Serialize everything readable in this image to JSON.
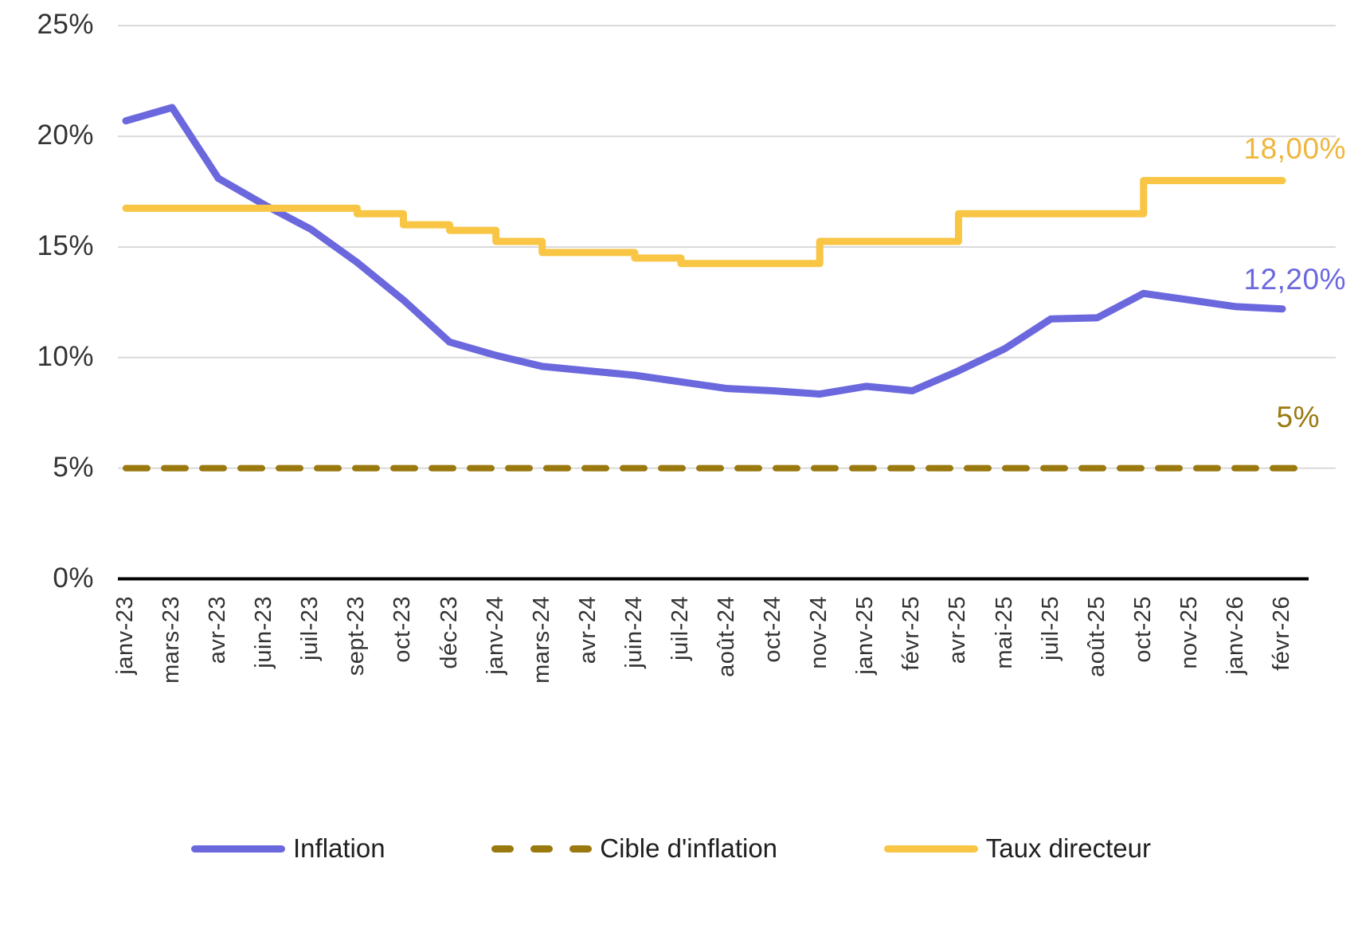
{
  "chart_data": {
    "type": "line",
    "title": "",
    "xlabel": "",
    "ylabel": "",
    "categories": [
      "janv-23",
      "mars-23",
      "avr-23",
      "juin-23",
      "juil-23",
      "sept-23",
      "oct-23",
      "déc-23",
      "janv-24",
      "mars-24",
      "avr-24",
      "juin-24",
      "juil-24",
      "août-24",
      "oct-24",
      "nov-24",
      "janv-25",
      "févr-25",
      "avr-25",
      "mai-25",
      "juil-25",
      "août-25",
      "oct-25",
      "nov-25",
      "janv-26",
      "févr-26"
    ],
    "ylim": [
      0,
      25
    ],
    "yticks": [
      0,
      5,
      10,
      15,
      20,
      25
    ],
    "ytick_labels": [
      "0%",
      "5%",
      "10%",
      "15%",
      "20%",
      "25%"
    ],
    "grid": true,
    "legend_position": "bottom",
    "series": [
      {
        "name": "Inflation",
        "style": "solid",
        "color": "#6B68DE",
        "values": [
          20.7,
          21.3,
          18.1,
          16.9,
          15.8,
          14.3,
          12.6,
          10.7,
          10.1,
          9.6,
          9.4,
          9.2,
          8.9,
          8.6,
          8.5,
          8.35,
          8.7,
          8.5,
          9.4,
          10.4,
          11.75,
          11.8,
          12.9,
          12.6,
          12.3,
          12.2
        ]
      },
      {
        "name": "Cible d'inflation",
        "style": "dashed",
        "color": "#9A790F",
        "values": [
          5,
          5,
          5,
          5,
          5,
          5,
          5,
          5,
          5,
          5,
          5,
          5,
          5,
          5,
          5,
          5,
          5,
          5,
          5,
          5,
          5,
          5,
          5,
          5,
          5,
          5
        ]
      },
      {
        "name": "Taux directeur",
        "style": "step",
        "color": "#F8C544",
        "values": [
          16.75,
          16.75,
          16.75,
          16.75,
          16.75,
          16.5,
          16.0,
          15.75,
          15.25,
          14.75,
          14.75,
          14.5,
          14.25,
          14.25,
          14.25,
          15.25,
          15.25,
          15.25,
          16.5,
          16.5,
          16.5,
          16.5,
          18.0,
          18.0,
          18.0,
          18.0
        ]
      }
    ],
    "annotations": [
      {
        "text": "18,00%",
        "series": "Taux directeur",
        "color": "#EEB63C"
      },
      {
        "text": "12,20%",
        "series": "Inflation",
        "color": "#6B68DE"
      },
      {
        "text": "5%",
        "series": "Cible d'inflation",
        "color": "#9A790F"
      }
    ],
    "grid_color": "#D9D9D9",
    "axis_color": "#000000"
  },
  "legend": {
    "items": [
      {
        "label": "Inflation",
        "color": "#6B68DE",
        "style": "solid"
      },
      {
        "label": "Cible d'inflation",
        "color": "#9A790F",
        "style": "dashed"
      },
      {
        "label": "Taux directeur",
        "color": "#F8C544",
        "style": "solid"
      }
    ]
  }
}
